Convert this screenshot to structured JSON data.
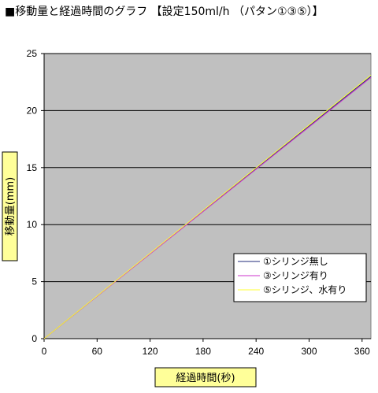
{
  "chart_data": {
    "type": "line",
    "title": "■移動量と経過時間のグラフ 【設定150ml/h （パタン①③⑤）】",
    "xlabel": "経過時間(秒)",
    "ylabel": "移動量(mm)",
    "xlim": [
      0,
      370
    ],
    "ylim": [
      0,
      25
    ],
    "xticks": [
      0,
      60,
      120,
      180,
      240,
      300,
      360
    ],
    "yticks": [
      0,
      5,
      10,
      15,
      20,
      25
    ],
    "grid": "horizontal",
    "legend_position": "bottom-right",
    "series": [
      {
        "name": "①シリンジ無し",
        "color": "#1f2a7a",
        "x": [
          0,
          370
        ],
        "y": [
          0,
          23.0
        ]
      },
      {
        "name": "③シリンジ有り",
        "color": "#cc33cc",
        "x": [
          0,
          370
        ],
        "y": [
          0,
          22.9
        ]
      },
      {
        "name": "⑤シリンジ、水有り",
        "color": "#ffff33",
        "x": [
          0,
          370
        ],
        "y": [
          0,
          23.1
        ]
      }
    ]
  }
}
